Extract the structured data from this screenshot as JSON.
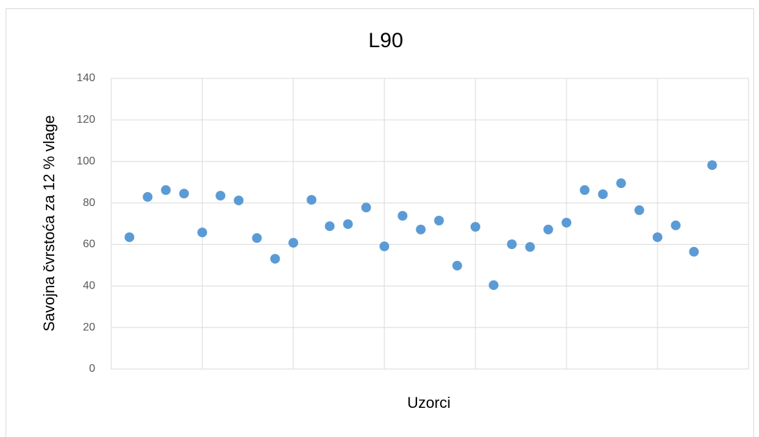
{
  "chart_data": {
    "type": "scatter",
    "title": "L90",
    "x_label": "Uzorci",
    "y_label": "Savojna čvrstoća za 12 % vlage",
    "series": [
      {
        "name": "L90",
        "color": "#5b9bd5",
        "x": [
          1,
          2,
          3,
          4,
          5,
          6,
          7,
          8,
          9,
          10,
          11,
          12,
          13,
          14,
          15,
          16,
          17,
          18,
          19,
          20,
          21,
          22,
          23,
          24,
          25,
          26,
          27,
          28,
          29,
          30,
          31,
          32,
          33
        ],
        "values": [
          63.5,
          82.9,
          86.2,
          84.5,
          65.8,
          83.5,
          81.2,
          63.1,
          53.1,
          60.8,
          81.5,
          68.8,
          69.8,
          77.8,
          59.1,
          73.8,
          67.2,
          71.5,
          49.8,
          68.5,
          40.4,
          60.1,
          58.8,
          67.2,
          70.5,
          86.2,
          84.2,
          89.5,
          76.5,
          63.5,
          69.2,
          56.5,
          98.2
        ]
      }
    ],
    "xlim": [
      0,
      35
    ],
    "xticks": [
      0,
      5,
      10,
      15,
      20,
      25,
      30,
      35
    ],
    "ylim": [
      0,
      140
    ],
    "yticks": [
      0,
      20,
      40,
      60,
      80,
      100,
      120,
      140
    ],
    "grid": true
  }
}
